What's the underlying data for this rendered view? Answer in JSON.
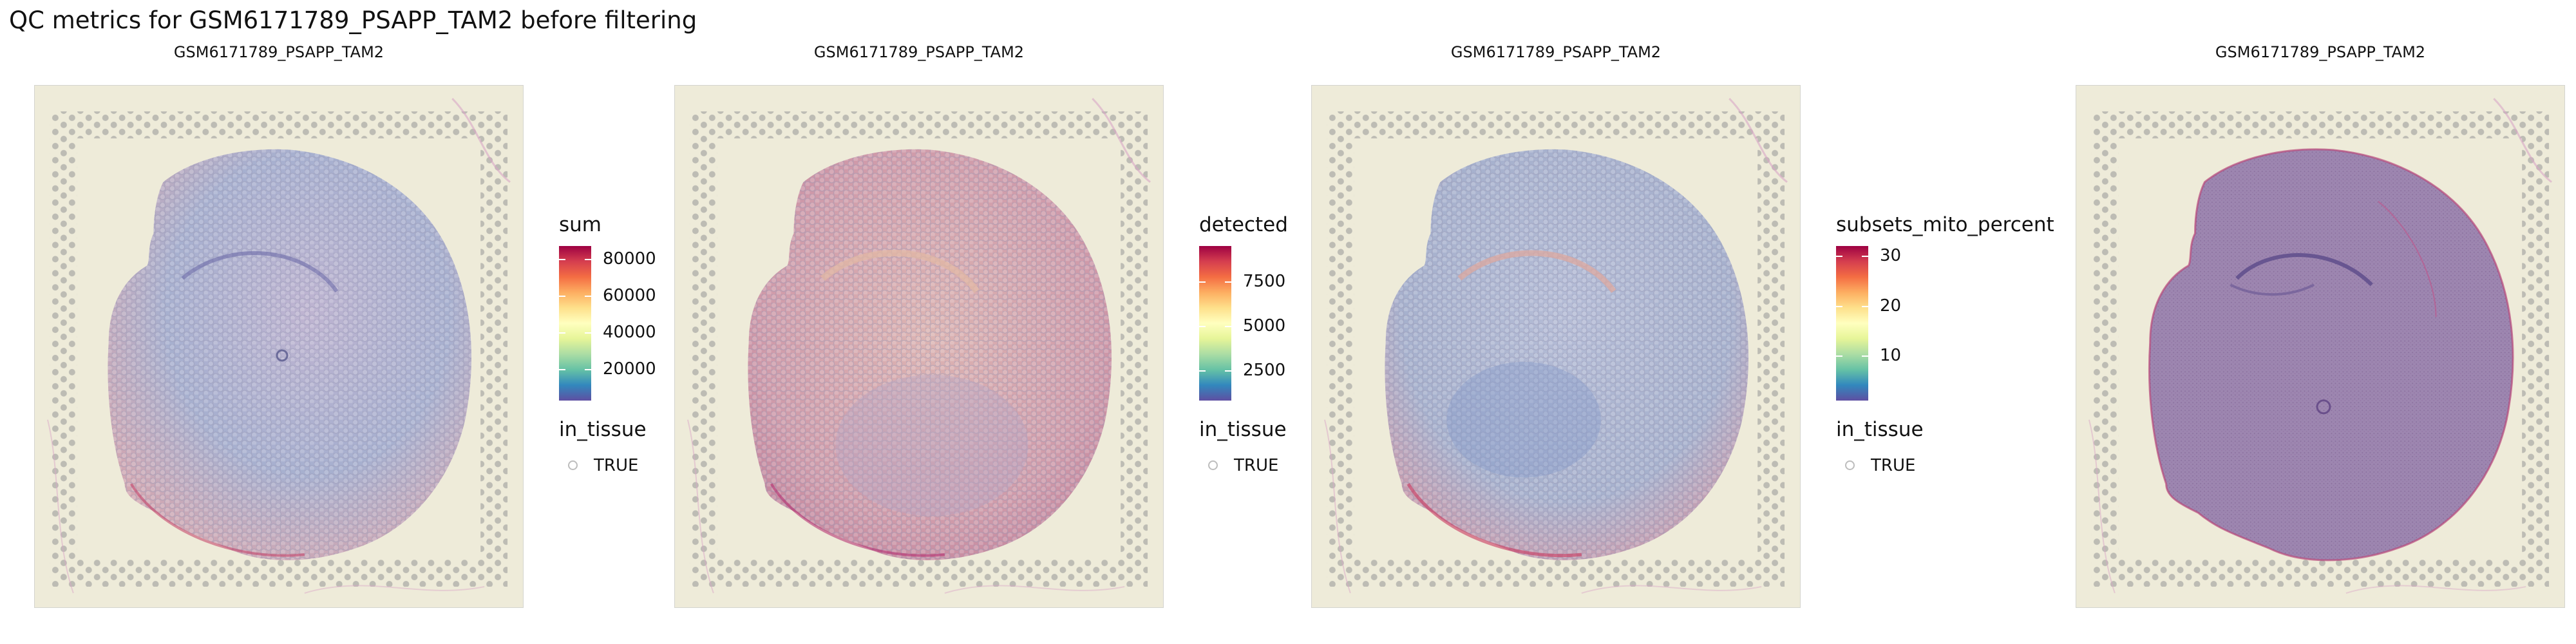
{
  "figure": {
    "title": "QC metrics for GSM6171789_PSAPP_TAM2 before filtering"
  },
  "chart_data": [
    {
      "type": "spatial-scatter",
      "title": "GSM6171789_PSAPP_TAM2",
      "color_legend": {
        "title": "sum",
        "ticks": [
          20000,
          40000,
          60000,
          80000
        ],
        "tick_labels": [
          "20000",
          "40000",
          "60000",
          "80000"
        ],
        "range": [
          3000,
          87000
        ]
      },
      "shape_legend": {
        "title": "in_tissue",
        "entries": [
          "TRUE"
        ]
      }
    },
    {
      "type": "spatial-scatter",
      "title": "GSM6171789_PSAPP_TAM2",
      "color_legend": {
        "title": "detected",
        "ticks": [
          2500,
          5000,
          7500
        ],
        "tick_labels": [
          "2500",
          "5000",
          "7500"
        ],
        "range": [
          800,
          9500
        ]
      },
      "shape_legend": {
        "title": "in_tissue",
        "entries": [
          "TRUE"
        ]
      }
    },
    {
      "type": "spatial-scatter",
      "title": "GSM6171789_PSAPP_TAM2",
      "color_legend": {
        "title": "subsets_mito_percent",
        "ticks": [
          10,
          20,
          30
        ],
        "tick_labels": [
          "10",
          "20",
          "30"
        ],
        "range": [
          1,
          32
        ]
      },
      "shape_legend": {
        "title": "in_tissue",
        "entries": [
          "TRUE"
        ]
      }
    },
    {
      "type": "image",
      "title": "GSM6171789_PSAPP_TAM2"
    }
  ],
  "colors": {
    "palette_spectral": [
      "#5e4fa2",
      "#3288bd",
      "#66c2a5",
      "#abdda4",
      "#e6f598",
      "#ffffbf",
      "#fee08b",
      "#fdae61",
      "#f46d43",
      "#d53e4f",
      "#9e0142"
    ],
    "background": "#eeebd9",
    "tissue_base": "#9d86b0",
    "tissue_purple": "#8a5c95",
    "spot_tint": [
      "#8fa3c9",
      "#c9879c",
      "#a3acd0"
    ]
  }
}
